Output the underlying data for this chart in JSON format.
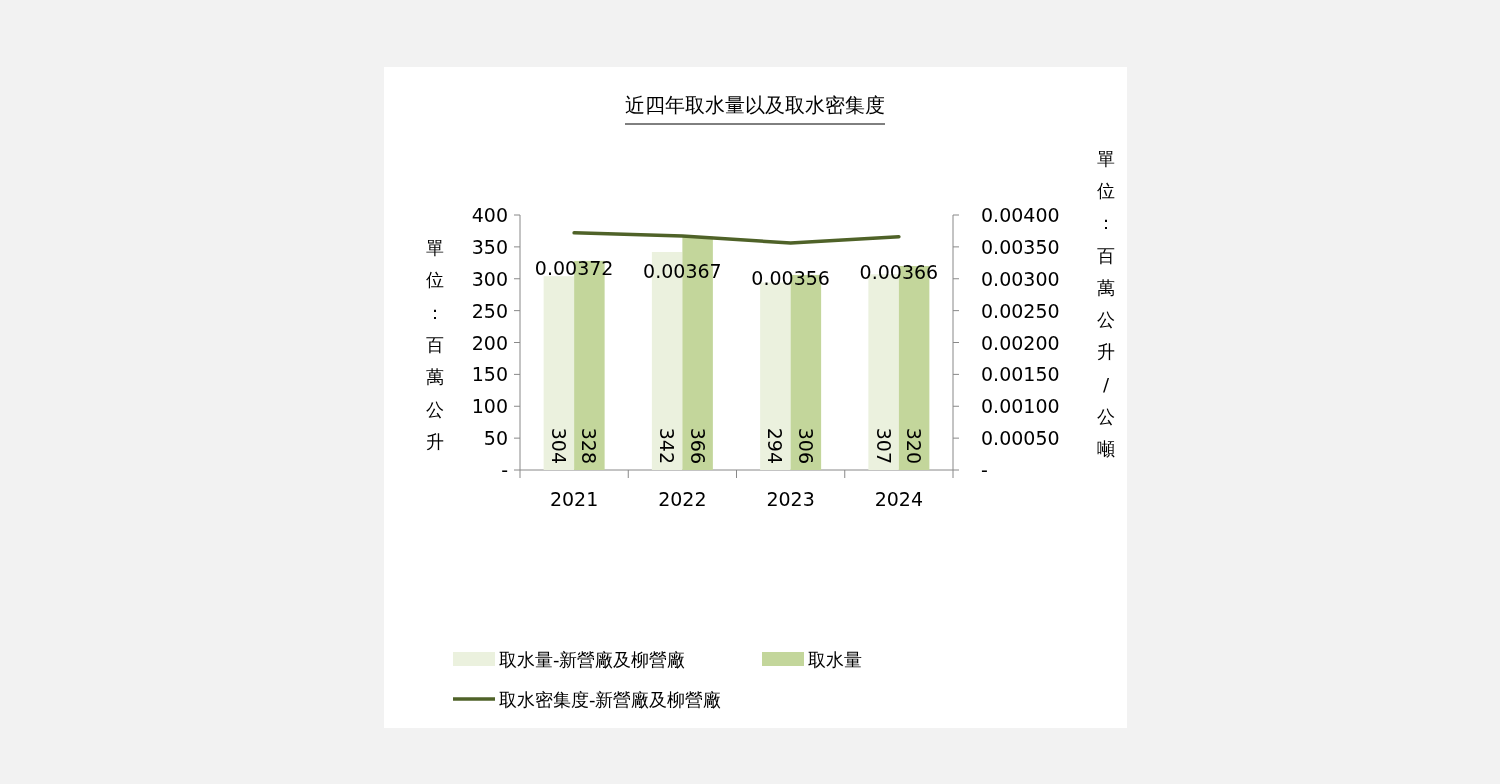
{
  "chart_data": {
    "type": "bar",
    "title": "近四年取水量以及取水密集度",
    "ylabel": "單位：百萬公升",
    "y2label": "單位：百萬公升/公噸",
    "categories": [
      "2021",
      "2022",
      "2023",
      "2024"
    ],
    "series": [
      {
        "name": "取水量-新營廠及柳營廠",
        "color": "#ebf1de",
        "values": [
          304,
          342,
          294,
          307
        ]
      },
      {
        "name": "取水量",
        "color": "#c3d69b",
        "values": [
          328,
          366,
          306,
          320
        ]
      },
      {
        "name": "取水密集度-新營廠及柳營廠",
        "type": "line",
        "axis": "y2",
        "color": "#4f6228",
        "values": [
          0.00372,
          0.00367,
          0.00356,
          0.00366
        ]
      }
    ],
    "ylim": [
      0,
      400
    ],
    "yticks": [
      {
        "value": 0,
        "label": "-"
      },
      50,
      100,
      150,
      200,
      250,
      300,
      350,
      400
    ],
    "y2lim": [
      0,
      0.004
    ],
    "y2ticks": [
      {
        "value": 0,
        "label": "-"
      },
      {
        "value": 0.0005,
        "label": "0.00050"
      },
      {
        "value": 0.001,
        "label": "0.00100"
      },
      {
        "value": 0.0015,
        "label": "0.00150"
      },
      {
        "value": 0.002,
        "label": "0.00200"
      },
      {
        "value": 0.0025,
        "label": "0.00250"
      },
      {
        "value": 0.003,
        "label": "0.00300"
      },
      {
        "value": 0.0035,
        "label": "0.00350"
      },
      {
        "value": 0.004,
        "label": "0.00400"
      }
    ],
    "data_labels": true,
    "legend": "bottom",
    "grid": false,
    "marker": "none"
  }
}
